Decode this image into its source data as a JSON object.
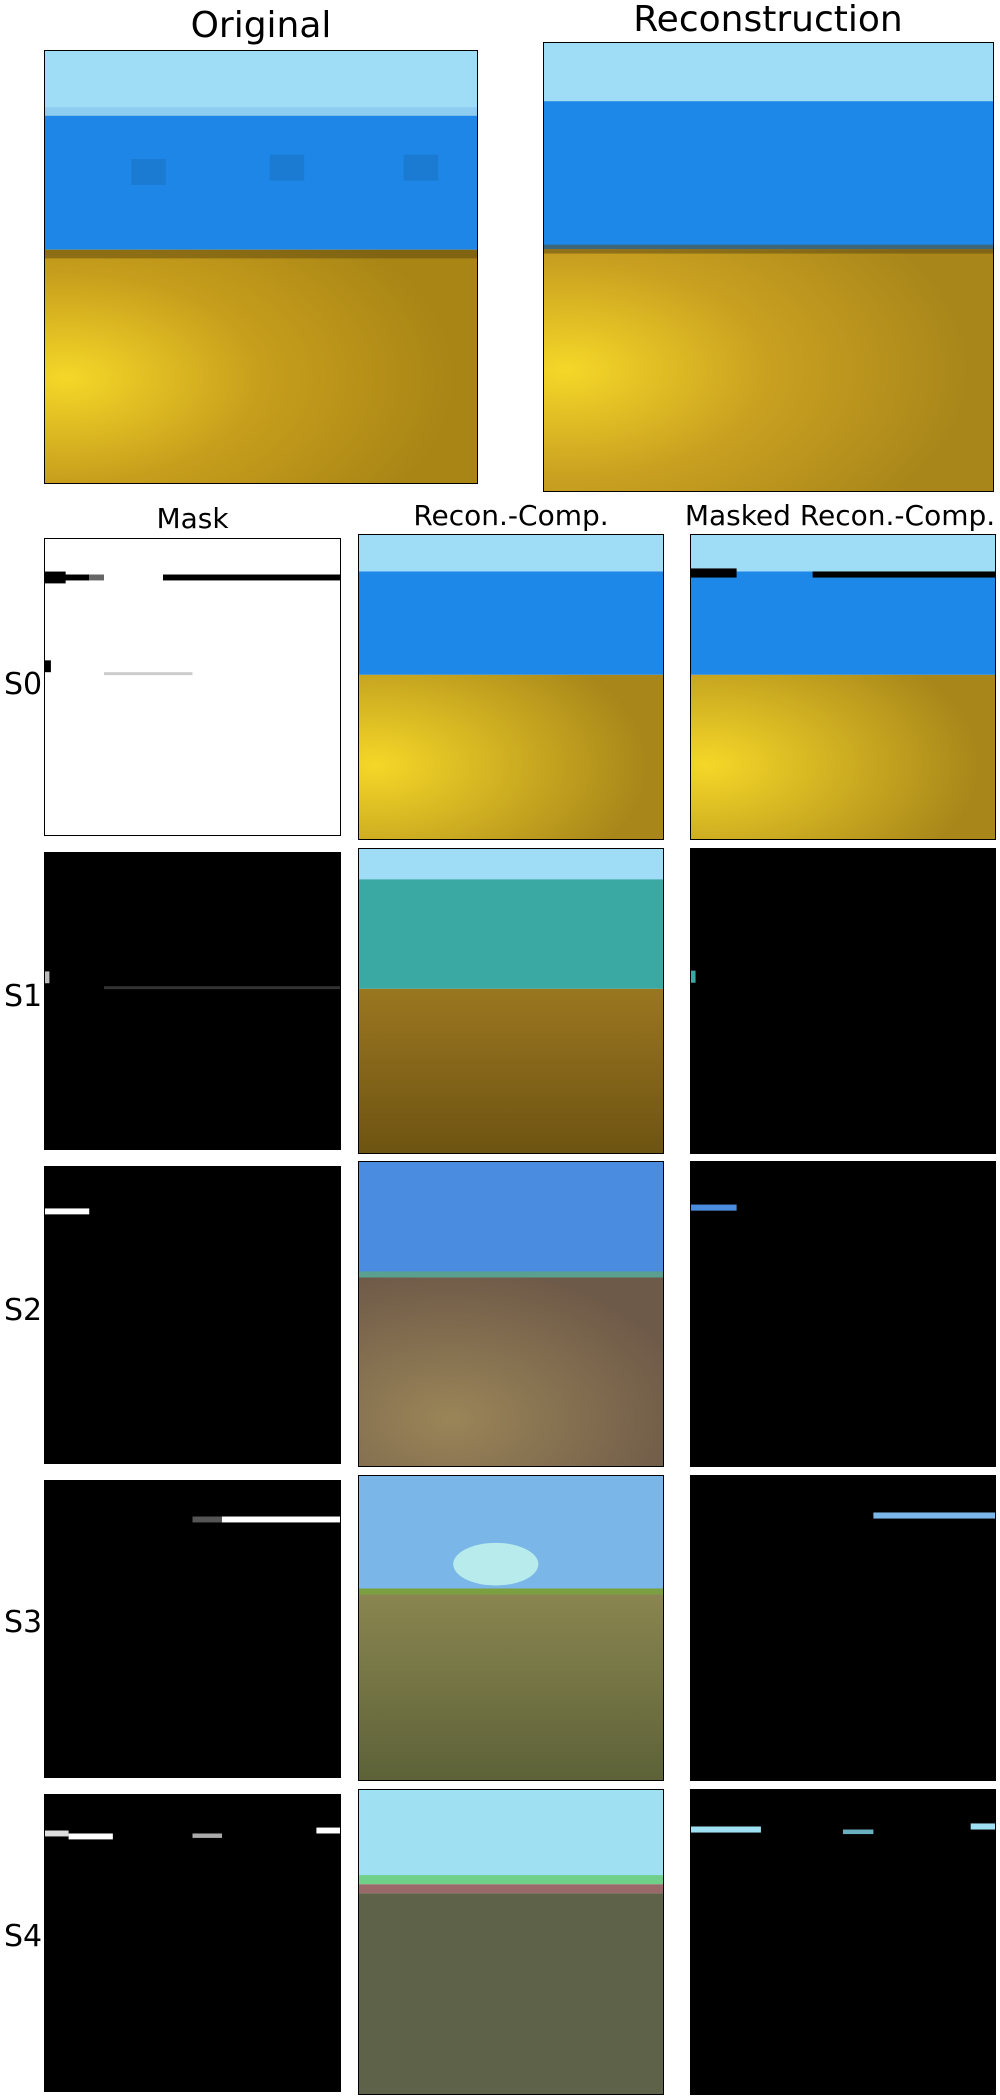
{
  "top": {
    "original_title": "Original",
    "reconstruction_title": "Reconstruction"
  },
  "columns": {
    "mask": "Mask",
    "recon_comp": "Recon.-Comp.",
    "masked_recon_comp": "Masked Recon.-Comp."
  },
  "rows": [
    {
      "label": "S0"
    },
    {
      "label": "S1"
    },
    {
      "label": "S2"
    },
    {
      "label": "S3"
    },
    {
      "label": "S4"
    }
  ],
  "colors": {
    "sky_light": "#9fdcf5",
    "wall_blue": "#1e88e8",
    "floor_yellow": "#c9a020",
    "s1_teal": "#3aa9a4",
    "s1_floor": "#8a6a18",
    "s2_sky": "#4a8de0",
    "s2_floor": "#7e6a4e",
    "s3_sky": "#7ab7e8",
    "s3_floor": "#6d7040",
    "s4_sky": "#9fe0f2",
    "s4_floor": "#5e6248",
    "mask_black": "#000000",
    "mask_white": "#ffffff"
  }
}
